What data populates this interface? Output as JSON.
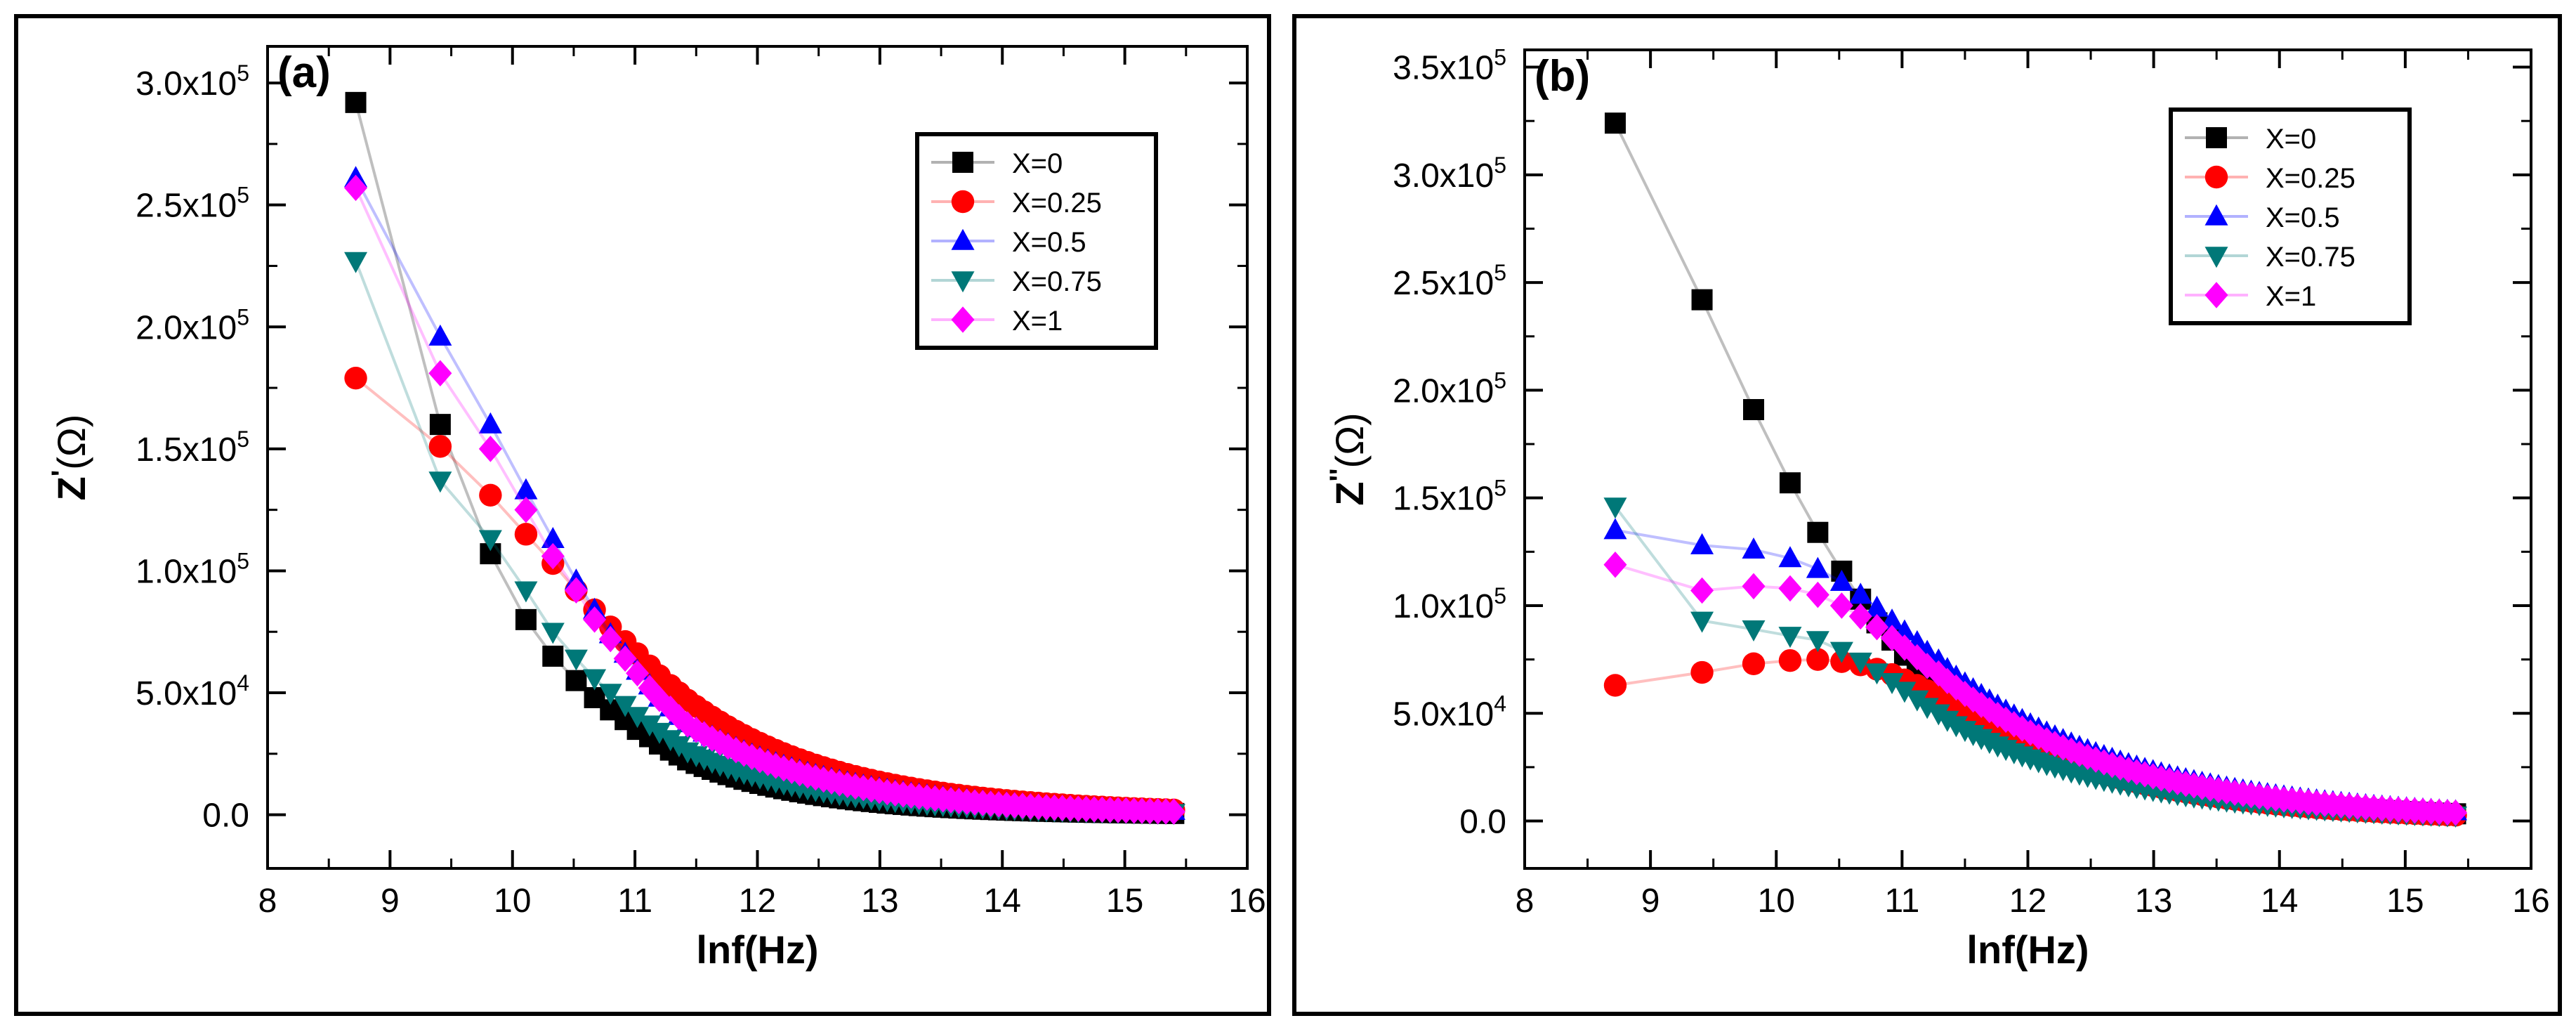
{
  "chart_data": [
    {
      "type": "line",
      "panel_label": "(a)",
      "xlabel": "lnf(Hz)",
      "ylabel_main": "Z",
      "ylabel_prime": "'",
      "ylabel_unit": "(Ω)",
      "xlim": [
        8,
        16
      ],
      "ylim": [
        -22000,
        315000
      ],
      "x_ticks": [
        8,
        9,
        10,
        11,
        12,
        13,
        14,
        15,
        16
      ],
      "y_ticks": [
        {
          "value": 0,
          "mantissa": "0.0",
          "exp": ""
        },
        {
          "value": 50000,
          "mantissa": "5.0x10",
          "exp": "4"
        },
        {
          "value": 100000,
          "mantissa": "1.0x10",
          "exp": "5"
        },
        {
          "value": 150000,
          "mantissa": "1.5x10",
          "exp": "5"
        },
        {
          "value": 200000,
          "mantissa": "2.0x10",
          "exp": "5"
        },
        {
          "value": 250000,
          "mantissa": "2.5x10",
          "exp": "5"
        },
        {
          "value": 300000,
          "mantissa": "3.0x10",
          "exp": "5"
        }
      ],
      "legend_position": "top-right",
      "series": [
        {
          "name": "X=0",
          "color": "#000000",
          "marker": "square",
          "points": [
            [
              8.72,
              292000
            ],
            [
              9.41,
              160000
            ],
            [
              9.82,
              107000
            ],
            [
              10.11,
              80000
            ],
            [
              10.33,
              65000
            ],
            [
              10.52,
              55000
            ],
            [
              10.67,
              48000
            ],
            [
              10.8,
              43000
            ],
            [
              10.92,
              39000
            ],
            [
              11.02,
              35000
            ],
            [
              11.12,
              32000
            ],
            [
              11.2,
              29000
            ],
            [
              11.29,
              26500
            ],
            [
              11.36,
              24500
            ],
            [
              11.43,
              22500
            ]
          ],
          "curve": {
            "x0": 11.43,
            "y0": 22500,
            "k": 0.95
          }
        },
        {
          "name": "X=0.25",
          "color": "#ff0000",
          "marker": "circle",
          "points": [
            [
              8.72,
              179000
            ],
            [
              9.41,
              151000
            ],
            [
              9.82,
              131000
            ],
            [
              10.11,
              115000
            ],
            [
              10.33,
              103000
            ],
            [
              10.52,
              92000
            ],
            [
              10.67,
              84000
            ],
            [
              10.8,
              77000
            ],
            [
              10.92,
              71000
            ],
            [
              11.02,
              66000
            ],
            [
              11.12,
              61000
            ],
            [
              11.2,
              57000
            ],
            [
              11.29,
              53000
            ],
            [
              11.36,
              50000
            ],
            [
              11.43,
              47000
            ]
          ],
          "curve": {
            "x0": 11.43,
            "y0": 47000,
            "k": 0.8
          }
        },
        {
          "name": "X=0.5",
          "color": "#0000ff",
          "marker": "triangle-up",
          "points": [
            [
              8.72,
              261000
            ],
            [
              9.41,
              196000
            ],
            [
              9.82,
              160000
            ],
            [
              10.11,
              133000
            ],
            [
              10.33,
              113000
            ],
            [
              10.52,
              96000
            ],
            [
              10.67,
              84000
            ],
            [
              10.8,
              74000
            ],
            [
              10.92,
              66000
            ],
            [
              11.02,
              59000
            ],
            [
              11.12,
              53000
            ],
            [
              11.2,
              48000
            ],
            [
              11.29,
              44000
            ],
            [
              11.36,
              40500
            ],
            [
              11.43,
              37500
            ]
          ],
          "curve": {
            "x0": 11.43,
            "y0": 37500,
            "k": 0.8
          }
        },
        {
          "name": "X=0.75",
          "color": "#007878",
          "marker": "triangle-down",
          "points": [
            [
              8.72,
              227000
            ],
            [
              9.41,
              137000
            ],
            [
              9.82,
              113000
            ],
            [
              10.11,
              92000
            ],
            [
              10.33,
              75000
            ],
            [
              10.52,
              64000
            ],
            [
              10.67,
              56000
            ],
            [
              10.8,
              50000
            ],
            [
              10.92,
              45000
            ],
            [
              11.02,
              40500
            ],
            [
              11.12,
              37000
            ],
            [
              11.2,
              34000
            ],
            [
              11.29,
              31000
            ],
            [
              11.36,
              28500
            ],
            [
              11.43,
              26000
            ]
          ],
          "curve": {
            "x0": 11.43,
            "y0": 26000,
            "k": 0.9
          }
        },
        {
          "name": "X=1",
          "color": "#ff00ff",
          "marker": "diamond",
          "points": [
            [
              8.72,
              257000
            ],
            [
              9.41,
              181000
            ],
            [
              9.82,
              150000
            ],
            [
              10.11,
              125000
            ],
            [
              10.33,
              106000
            ],
            [
              10.52,
              92000
            ],
            [
              10.67,
              80000
            ],
            [
              10.8,
              72000
            ],
            [
              10.92,
              64000
            ],
            [
              11.02,
              58000
            ],
            [
              11.12,
              52000
            ],
            [
              11.2,
              47500
            ],
            [
              11.29,
              43500
            ],
            [
              11.36,
              40000
            ],
            [
              11.43,
              37000
            ]
          ],
          "curve": {
            "x0": 11.43,
            "y0": 37000,
            "k": 0.85
          }
        }
      ]
    },
    {
      "type": "line",
      "panel_label": "(b)",
      "xlabel": "lnf(Hz)",
      "ylabel_main": "Z",
      "ylabel_prime": "''",
      "ylabel_unit": "(Ω)",
      "xlim": [
        8,
        16
      ],
      "ylim": [
        -22000,
        358000
      ],
      "x_ticks": [
        8,
        9,
        10,
        11,
        12,
        13,
        14,
        15,
        16
      ],
      "y_ticks": [
        {
          "value": 0,
          "mantissa": "0.0",
          "exp": ""
        },
        {
          "value": 50000,
          "mantissa": "5.0x10",
          "exp": "4"
        },
        {
          "value": 100000,
          "mantissa": "1.0x10",
          "exp": "5"
        },
        {
          "value": 150000,
          "mantissa": "1.5x10",
          "exp": "5"
        },
        {
          "value": 200000,
          "mantissa": "2.0x10",
          "exp": "5"
        },
        {
          "value": 250000,
          "mantissa": "2.5x10",
          "exp": "5"
        },
        {
          "value": 300000,
          "mantissa": "3.0x10",
          "exp": "5"
        },
        {
          "value": 350000,
          "mantissa": "3.5x10",
          "exp": "5"
        }
      ],
      "legend_position": "top-right",
      "series": [
        {
          "name": "X=0",
          "color": "#000000",
          "marker": "square",
          "points": [
            [
              8.72,
              324000
            ],
            [
              9.41,
              242000
            ],
            [
              9.82,
              191000
            ],
            [
              10.11,
              157000
            ],
            [
              10.33,
              134000
            ],
            [
              10.52,
              116000
            ],
            [
              10.67,
              103000
            ],
            [
              10.8,
              92000
            ],
            [
              10.92,
              84000
            ],
            [
              11.02,
              77000
            ],
            [
              11.12,
              71000
            ],
            [
              11.2,
              66000
            ],
            [
              11.29,
              61500
            ],
            [
              11.36,
              57500
            ],
            [
              11.43,
              54000
            ]
          ],
          "curve": {
            "x0": 11.43,
            "y0": 54000,
            "k": 0.7
          }
        },
        {
          "name": "X=0.25",
          "color": "#ff0000",
          "marker": "circle",
          "points": [
            [
              8.72,
              63000
            ],
            [
              9.41,
              69000
            ],
            [
              9.82,
              73000
            ],
            [
              10.11,
              74500
            ],
            [
              10.33,
              75000
            ],
            [
              10.52,
              74000
            ],
            [
              10.67,
              72500
            ],
            [
              10.8,
              70500
            ],
            [
              10.92,
              68000
            ],
            [
              11.02,
              65500
            ],
            [
              11.12,
              63000
            ],
            [
              11.2,
              60500
            ],
            [
              11.29,
              58000
            ],
            [
              11.36,
              55500
            ],
            [
              11.43,
              53000
            ]
          ],
          "curve": {
            "x0": 11.43,
            "y0": 53000,
            "k": 0.75
          }
        },
        {
          "name": "X=0.5",
          "color": "#0000ff",
          "marker": "triangle-up",
          "points": [
            [
              8.72,
              135000
            ],
            [
              9.41,
              128000
            ],
            [
              9.82,
              126000
            ],
            [
              10.11,
              122000
            ],
            [
              10.33,
              117000
            ],
            [
              10.52,
              111000
            ],
            [
              10.67,
              105000
            ],
            [
              10.8,
              99000
            ],
            [
              10.92,
              93000
            ],
            [
              11.02,
              88000
            ],
            [
              11.12,
              83000
            ],
            [
              11.2,
              78500
            ],
            [
              11.29,
              74500
            ],
            [
              11.36,
              70500
            ],
            [
              11.43,
              67000
            ]
          ],
          "curve": {
            "x0": 11.43,
            "y0": 67000,
            "k": 0.68
          }
        },
        {
          "name": "X=0.75",
          "color": "#007878",
          "marker": "triangle-down",
          "points": [
            [
              8.72,
              146000
            ],
            [
              9.41,
              93000
            ],
            [
              9.82,
              89000
            ],
            [
              10.11,
              86000
            ],
            [
              10.33,
              84000
            ],
            [
              10.52,
              79000
            ],
            [
              10.67,
              74000
            ],
            [
              10.8,
              69000
            ],
            [
              10.92,
              64500
            ],
            [
              11.02,
              60500
            ],
            [
              11.12,
              56500
            ],
            [
              11.2,
              53000
            ],
            [
              11.29,
              50000
            ],
            [
              11.36,
              47000
            ],
            [
              11.43,
              44500
            ]
          ],
          "curve": {
            "x0": 11.43,
            "y0": 44500,
            "k": 0.72
          }
        },
        {
          "name": "X=1",
          "color": "#ff00ff",
          "marker": "diamond",
          "points": [
            [
              8.72,
              119000
            ],
            [
              9.41,
              107000
            ],
            [
              9.82,
              109000
            ],
            [
              10.11,
              108000
            ],
            [
              10.33,
              105000
            ],
            [
              10.52,
              100000
            ],
            [
              10.67,
              95000
            ],
            [
              10.8,
              90000
            ],
            [
              10.92,
              85000
            ],
            [
              11.02,
              80500
            ],
            [
              11.12,
              76000
            ],
            [
              11.2,
              72000
            ],
            [
              11.29,
              68500
            ],
            [
              11.36,
              65000
            ],
            [
              11.43,
              62000
            ]
          ],
          "curve": {
            "x0": 11.43,
            "y0": 62000,
            "k": 0.7
          }
        }
      ]
    }
  ]
}
